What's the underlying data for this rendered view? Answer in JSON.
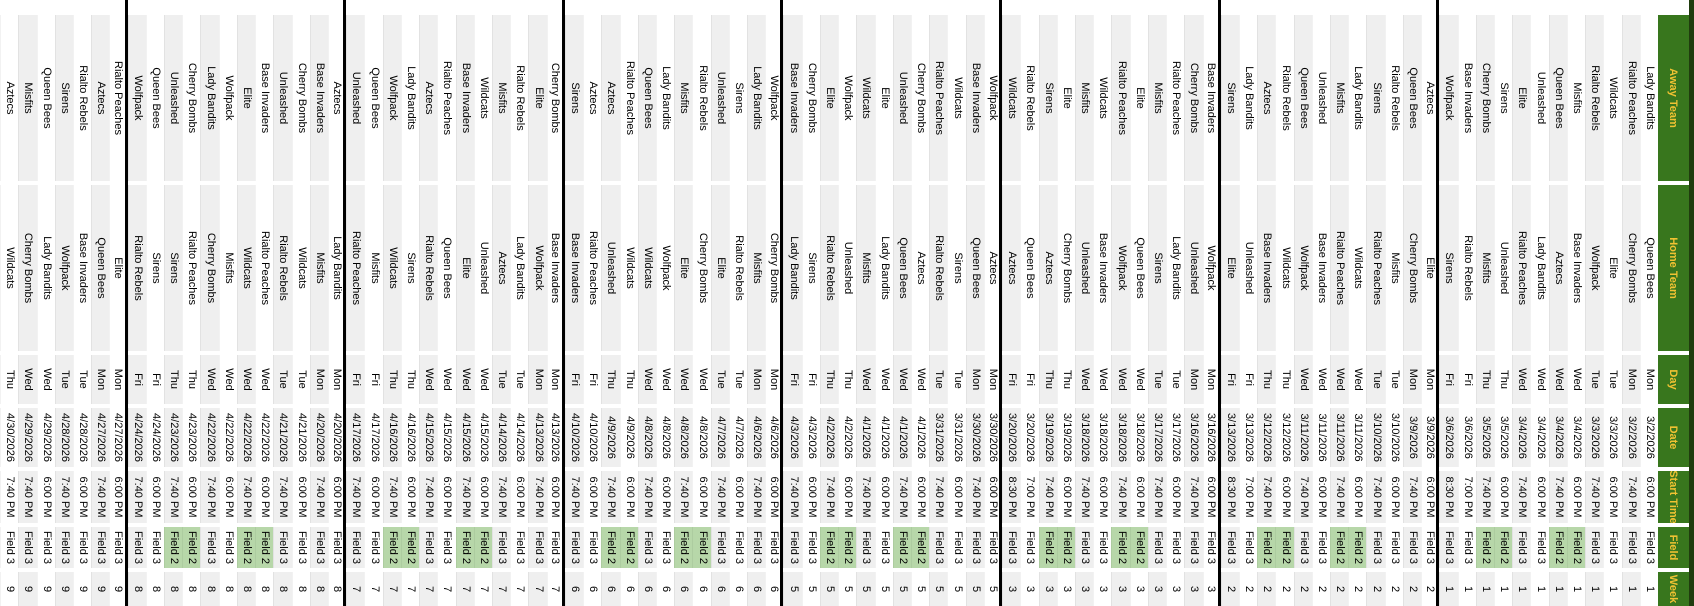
{
  "sheet": {
    "header_labels": [
      "Away Team",
      "Home Team",
      "Day",
      "Date",
      "Start Time",
      "Field",
      "Week"
    ],
    "teams": [
      "Aztecs",
      "Base Invaders",
      "Cherry Bombs",
      "Elite",
      "Lady Bandits",
      "Misfits",
      "Queen Bees",
      "Rialto Peaches",
      "Rialto Rebels",
      "Sirens",
      "Unleashed",
      "Wildcats",
      "Wolfpack"
    ],
    "colors": {
      "header_bg": "#38761d",
      "header_text": "#f1c232",
      "edge_strip": "#203c0e",
      "row_stripe": "#efefef",
      "field2_highlight": "#b7d7a9",
      "week_divider": "#000000"
    },
    "games": [
      [
        "Lady Bandits",
        "Queen Bees",
        "Mon",
        "3/2/2026",
        "6:00 PM",
        "Field 3",
        1
      ],
      [
        "Rialto Peaches",
        "Cherry Bombs",
        "Mon",
        "3/2/2026",
        "7:40 PM",
        "Field 3",
        1
      ],
      [
        "Wildcats",
        "Elite",
        "Tue",
        "3/3/2026",
        "6:00 PM",
        "Field 3",
        1
      ],
      [
        "Rialto Rebels",
        "Wolfpack",
        "Tue",
        "3/3/2026",
        "7:40 PM",
        "Field 3",
        1
      ],
      [
        "Misfits",
        "Base Invaders",
        "Wed",
        "3/4/2026",
        "6:00 PM",
        "Field 2",
        1
      ],
      [
        "Queen Bees",
        "Aztecs",
        "Wed",
        "3/4/2026",
        "7:40 PM",
        "Field 2",
        1
      ],
      [
        "Unleashed",
        "Lady Bandits",
        "Wed",
        "3/4/2026",
        "6:00 PM",
        "Field 3",
        1
      ],
      [
        "Elite",
        "Rialto Peaches",
        "Wed",
        "3/4/2026",
        "7:40 PM",
        "Field 3",
        1
      ],
      [
        "Sirens",
        "Unleashed",
        "Thu",
        "3/5/2026",
        "6:00 PM",
        "Field 2",
        1
      ],
      [
        "Cherry Bombs",
        "Misfits",
        "Thu",
        "3/5/2026",
        "7:40 PM",
        "Field 2",
        1
      ],
      [
        "Base Invaders",
        "Rialto Rebels",
        "Fri",
        "3/6/2026",
        "7:00 PM",
        "Field 3",
        1
      ],
      [
        "Wolfpack",
        "Sirens",
        "Fri",
        "3/6/2026",
        "8:30 PM",
        "Field 3",
        1
      ],
      [
        "Aztecs",
        "Elite",
        "Mon",
        "3/9/2026",
        "6:00 PM",
        "Field 3",
        2
      ],
      [
        "Queen Bees",
        "Cherry Bombs",
        "Mon",
        "3/9/2026",
        "7:40 PM",
        "Field 3",
        2
      ],
      [
        "Rialto Rebels",
        "Misfits",
        "Tue",
        "3/10/2026",
        "6:00 PM",
        "Field 3",
        2
      ],
      [
        "Sirens",
        "Rialto Peaches",
        "Tue",
        "3/10/2026",
        "7:40 PM",
        "Field 3",
        2
      ],
      [
        "Lady Bandits",
        "Wildcats",
        "Wed",
        "3/11/2026",
        "6:00 PM",
        "Field 2",
        2
      ],
      [
        "Misfits",
        "Rialto Peaches",
        "Wed",
        "3/11/2026",
        "7:40 PM",
        "Field 2",
        2
      ],
      [
        "Unleashed",
        "Base Invaders",
        "Wed",
        "3/11/2026",
        "6:00 PM",
        "Field 3",
        2
      ],
      [
        "Queen Bees",
        "Wolfpack",
        "Wed",
        "3/11/2026",
        "7:40 PM",
        "Field 3",
        2
      ],
      [
        "Rialto Rebels",
        "Wildcats",
        "Thu",
        "3/12/2026",
        "6:00 PM",
        "Field 2",
        2
      ],
      [
        "Aztecs",
        "Base Invaders",
        "Thu",
        "3/12/2026",
        "7:40 PM",
        "Field 2",
        2
      ],
      [
        "Lady Bandits",
        "Unleashed",
        "Fri",
        "3/13/2026",
        "7:00 PM",
        "Field 3",
        2
      ],
      [
        "Sirens",
        "Elite",
        "Fri",
        "3/13/2026",
        "8:30 PM",
        "Field 3",
        2
      ],
      [
        "Base Invaders",
        "Wolfpack",
        "Mon",
        "3/16/2026",
        "6:00 PM",
        "Field 3",
        3
      ],
      [
        "Cherry Bombs",
        "Unleashed",
        "Mon",
        "3/16/2026",
        "7:40 PM",
        "Field 3",
        3
      ],
      [
        "Rialto Peaches",
        "Lady Bandits",
        "Tue",
        "3/17/2026",
        "6:00 PM",
        "Field 3",
        3
      ],
      [
        "Misfits",
        "Sirens",
        "Tue",
        "3/17/2026",
        "7:40 PM",
        "Field 3",
        3
      ],
      [
        "Elite",
        "Queen Bees",
        "Wed",
        "3/18/2026",
        "6:00 PM",
        "Field 2",
        3
      ],
      [
        "Rialto Peaches",
        "Wolfpack",
        "Wed",
        "3/18/2026",
        "7:40 PM",
        "Field 2",
        3
      ],
      [
        "Wildcats",
        "Base Invaders",
        "Wed",
        "3/18/2026",
        "6:00 PM",
        "Field 3",
        3
      ],
      [
        "Misfits",
        "Unleashed",
        "Wed",
        "3/18/2026",
        "7:40 PM",
        "Field 3",
        3
      ],
      [
        "Elite",
        "Cherry Bombs",
        "Thu",
        "3/19/2026",
        "6:00 PM",
        "Field 2",
        3
      ],
      [
        "Sirens",
        "Aztecs",
        "Thu",
        "3/19/2026",
        "7:40 PM",
        "Field 2",
        3
      ],
      [
        "Rialto Rebels",
        "Queen Bees",
        "Fri",
        "3/20/2026",
        "7:00 PM",
        "Field 3",
        3
      ],
      [
        "Wildcats",
        "Aztecs",
        "Fri",
        "3/20/2026",
        "8:30 PM",
        "Field 3",
        3
      ],
      [
        "Wolfpack",
        "Aztecs",
        "Mon",
        "3/30/2026",
        "6:00 PM",
        "Field 3",
        5
      ],
      [
        "Base Invaders",
        "Queen Bees",
        "Mon",
        "3/30/2026",
        "7:40 PM",
        "Field 3",
        5
      ],
      [
        "Wildcats",
        "Sirens",
        "Tue",
        "3/31/2026",
        "6:00 PM",
        "Field 3",
        5
      ],
      [
        "Rialto Peaches",
        "Rialto Rebels",
        "Tue",
        "3/31/2026",
        "7:40 PM",
        "Field 3",
        5
      ],
      [
        "Cherry Bombs",
        "Aztecs",
        "Wed",
        "4/1/2026",
        "6:00 PM",
        "Field 2",
        5
      ],
      [
        "Unleashed",
        "Queen Bees",
        "Wed",
        "4/1/2026",
        "7:40 PM",
        "Field 2",
        5
      ],
      [
        "Elite",
        "Lady Bandits",
        "Wed",
        "4/1/2026",
        "6:00 PM",
        "Field 3",
        5
      ],
      [
        "Wildcats",
        "Misfits",
        "Wed",
        "4/1/2026",
        "7:40 PM",
        "Field 3",
        5
      ],
      [
        "Wolfpack",
        "Unleashed",
        "Thu",
        "4/2/2026",
        "6:00 PM",
        "Field 2",
        5
      ],
      [
        "Elite",
        "Rialto Rebels",
        "Thu",
        "4/2/2026",
        "7:40 PM",
        "Field 2",
        5
      ],
      [
        "Cherry Bombs",
        "Sirens",
        "Fri",
        "4/3/2026",
        "6:00 PM",
        "Field 3",
        5
      ],
      [
        "Base Invaders",
        "Lady Bandits",
        "Fri",
        "4/3/2026",
        "7:40 PM",
        "Field 3",
        5
      ],
      [
        "Wolfpack",
        "Cherry Bombs",
        "Mon",
        "4/6/2026",
        "6:00 PM",
        "Field 3",
        6
      ],
      [
        "Lady Bandits",
        "Misfits",
        "Mon",
        "4/6/2026",
        "7:40 PM",
        "Field 3",
        6
      ],
      [
        "Sirens",
        "Rialto Rebels",
        "Tue",
        "4/7/2026",
        "6:00 PM",
        "Field 3",
        6
      ],
      [
        "Unleashed",
        "Elite",
        "Tue",
        "4/7/2026",
        "7:40 PM",
        "Field 3",
        6
      ],
      [
        "Rialto Rebels",
        "Cherry Bombs",
        "Wed",
        "4/8/2026",
        "6:00 PM",
        "Field 2",
        6
      ],
      [
        "Misfits",
        "Elite",
        "Wed",
        "4/8/2026",
        "7:40 PM",
        "Field 2",
        6
      ],
      [
        "Lady Bandits",
        "Wolfpack",
        "Wed",
        "4/8/2026",
        "6:00 PM",
        "Field 3",
        6
      ],
      [
        "Queen Bees",
        "Wildcats",
        "Wed",
        "4/8/2026",
        "7:40 PM",
        "Field 3",
        6
      ],
      [
        "Rialto Peaches",
        "Wildcats",
        "Thu",
        "4/9/2026",
        "6:00 PM",
        "Field 2",
        6
      ],
      [
        "Aztecs",
        "Unleashed",
        "Thu",
        "4/9/2026",
        "7:40 PM",
        "Field 2",
        6
      ],
      [
        "Aztecs",
        "Rialto Peaches",
        "Fri",
        "4/10/2026",
        "6:00 PM",
        "Field 3",
        6
      ],
      [
        "Sirens",
        "Base Invaders",
        "Fri",
        "4/10/2026",
        "7:40 PM",
        "Field 3",
        6
      ],
      [
        "Cherry Bombs",
        "Base Invaders",
        "Mon",
        "4/13/2026",
        "6:00 PM",
        "Field 3",
        7
      ],
      [
        "Elite",
        "Wolfpack",
        "Mon",
        "4/13/2026",
        "7:40 PM",
        "Field 3",
        7
      ],
      [
        "Rialto Rebels",
        "Lady Bandits",
        "Tue",
        "4/14/2026",
        "6:00 PM",
        "Field 3",
        7
      ],
      [
        "Misfits",
        "Aztecs",
        "Tue",
        "4/14/2026",
        "7:40 PM",
        "Field 3",
        7
      ],
      [
        "Wildcats",
        "Unleashed",
        "Wed",
        "4/15/2026",
        "6:00 PM",
        "Field 2",
        7
      ],
      [
        "Base Invaders",
        "Elite",
        "Wed",
        "4/15/2026",
        "7:40 PM",
        "Field 2",
        7
      ],
      [
        "Rialto Peaches",
        "Queen Bees",
        "Wed",
        "4/15/2026",
        "6:00 PM",
        "Field 3",
        7
      ],
      [
        "Aztecs",
        "Rialto Rebels",
        "Wed",
        "4/15/2026",
        "7:40 PM",
        "Field 3",
        7
      ],
      [
        "Lady Bandits",
        "Sirens",
        "Thu",
        "4/16/2026",
        "6:00 PM",
        "Field 2",
        7
      ],
      [
        "Wolfpack",
        "Wildcats",
        "Thu",
        "4/16/2026",
        "7:40 PM",
        "Field 2",
        7
      ],
      [
        "Queen Bees",
        "Misfits",
        "Fri",
        "4/17/2026",
        "6:00 PM",
        "Field 3",
        7
      ],
      [
        "Unleashed",
        "Rialto Peaches",
        "Fri",
        "4/17/2026",
        "7:40 PM",
        "Field 3",
        7
      ],
      [
        "Aztecs",
        "Lady Bandits",
        "Mon",
        "4/20/2026",
        "6:00 PM",
        "Field 3",
        8
      ],
      [
        "Base Invaders",
        "Misfits",
        "Mon",
        "4/20/2026",
        "7:40 PM",
        "Field 3",
        8
      ],
      [
        "Cherry Bombs",
        "Wildcats",
        "Tue",
        "4/21/2026",
        "6:00 PM",
        "Field 3",
        8
      ],
      [
        "Unleashed",
        "Rialto Rebels",
        "Tue",
        "4/21/2026",
        "7:40 PM",
        "Field 3",
        8
      ],
      [
        "Base Invaders",
        "Rialto Peaches",
        "Wed",
        "4/22/2026",
        "6:00 PM",
        "Field 2",
        8
      ],
      [
        "Elite",
        "Wildcats",
        "Wed",
        "4/22/2026",
        "7:40 PM",
        "Field 2",
        8
      ],
      [
        "Wolfpack",
        "Misfits",
        "Wed",
        "4/22/2026",
        "6:00 PM",
        "Field 3",
        8
      ],
      [
        "Lady Bandits",
        "Cherry Bombs",
        "Wed",
        "4/22/2026",
        "7:40 PM",
        "Field 3",
        8
      ],
      [
        "Cherry Bombs",
        "Rialto Peaches",
        "Thu",
        "4/23/2026",
        "6:00 PM",
        "Field 2",
        8
      ],
      [
        "Unleashed",
        "Sirens",
        "Thu",
        "4/23/2026",
        "7:40 PM",
        "Field 2",
        8
      ],
      [
        "Queen Bees",
        "Sirens",
        "Fri",
        "4/24/2026",
        "6:00 PM",
        "Field 3",
        8
      ],
      [
        "Wolfpack",
        "Rialto Rebels",
        "Fri",
        "4/24/2026",
        "7:40 PM",
        "Field 3",
        8
      ],
      [
        "Rialto Peaches",
        "Elite",
        "Mon",
        "4/27/2026",
        "6:00 PM",
        "Field 3",
        9
      ],
      [
        "Aztecs",
        "Queen Bees",
        "Mon",
        "4/27/2026",
        "7:40 PM",
        "Field 3",
        9
      ],
      [
        "Rialto Rebels",
        "Base Invaders",
        "Tue",
        "4/28/2026",
        "6:00 PM",
        "Field 3",
        9
      ],
      [
        "Sirens",
        "Wolfpack",
        "Tue",
        "4/28/2026",
        "7:40 PM",
        "Field 3",
        9
      ],
      [
        "Queen Bees",
        "Lady Bandits",
        "Wed",
        "4/29/2026",
        "6:00 PM",
        "Field 3",
        9
      ],
      [
        "Misfits",
        "Cherry Bombs",
        "Wed",
        "4/29/2026",
        "7:40 PM",
        "Field 3",
        9
      ],
      [
        "Aztecs",
        "Wildcats",
        "Thu",
        "4/30/2026",
        "7:40 PM",
        "Field 3",
        9
      ]
    ]
  }
}
